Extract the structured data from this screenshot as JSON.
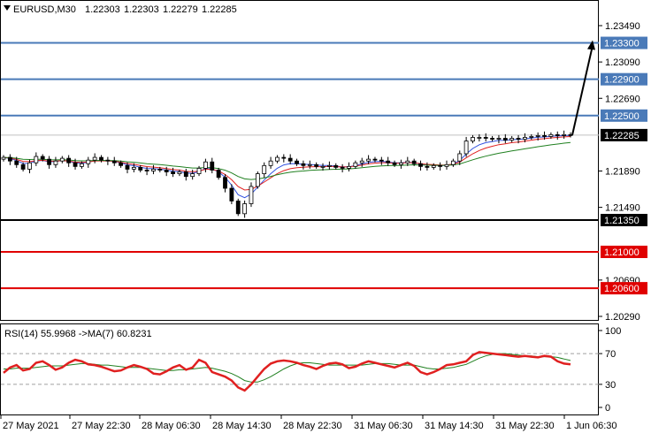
{
  "chart_data": [
    {
      "type": "candlestick",
      "title": "EURUSD,M30",
      "ohlc_header": {
        "open": "1.22303",
        "high": "1.22303",
        "low": "1.22279",
        "close": "1.22285"
      },
      "y_ticks": [
        "1.23490",
        "1.23090",
        "1.22690",
        "1.21890",
        "1.21490",
        "1.20690",
        "1.20290"
      ],
      "ylim": [
        1.2015,
        1.2375
      ],
      "x_tick_labels": [
        "27 May 2021",
        "27 May 22:30",
        "28 May 06:30",
        "28 May 14:30",
        "28 May 22:30",
        "31 May 06:30",
        "31 May 14:30",
        "31 May 22:30",
        "1 Jun 06:30"
      ],
      "current_price": "1.22285",
      "levels": [
        {
          "value": 1.233,
          "label": "1.23300",
          "color": "#4a7ab8"
        },
        {
          "value": 1.229,
          "label": "1.22900",
          "color": "#4a7ab8"
        },
        {
          "value": 1.225,
          "label": "1.22500",
          "color": "#4a7ab8"
        },
        {
          "value": 1.2135,
          "label": "1.21350",
          "color": "#000000"
        },
        {
          "value": 1.21,
          "label": "1.21000",
          "color": "#e00000"
        },
        {
          "value": 1.206,
          "label": "1.20600",
          "color": "#e00000"
        }
      ],
      "close_series": [
        1.2204,
        1.22,
        1.2196,
        1.2191,
        1.2198,
        1.2205,
        1.2202,
        1.2196,
        1.22,
        1.2203,
        1.2198,
        1.2194,
        1.2197,
        1.2201,
        1.2204,
        1.2201,
        1.22,
        1.2198,
        1.2195,
        1.2191,
        1.2193,
        1.219,
        1.2189,
        1.2191,
        1.219,
        1.2188,
        1.2186,
        1.2188,
        1.2183,
        1.2186,
        1.2192,
        1.2199,
        1.219,
        1.2182,
        1.217,
        1.2156,
        1.2142,
        1.2153,
        1.2172,
        1.2186,
        1.2195,
        1.22,
        1.2204,
        1.2203,
        1.22,
        1.2197,
        1.2195,
        1.2196,
        1.2194,
        1.2194,
        1.2195,
        1.2193,
        1.2192,
        1.2194,
        1.2198,
        1.22,
        1.2202,
        1.2201,
        1.22,
        1.2198,
        1.2196,
        1.2198,
        1.22,
        1.2197,
        1.2194,
        1.2193,
        1.2195,
        1.2194,
        1.2196,
        1.22,
        1.2208,
        1.2222,
        1.2226,
        1.2226,
        1.2225,
        1.2224,
        1.2225,
        1.2223,
        1.2225,
        1.2224,
        1.2226,
        1.2227,
        1.2228,
        1.2227,
        1.2229,
        1.2228,
        1.2229,
        1.22285
      ],
      "forecast_arrow": {
        "from": 1.22285,
        "to": 1.2333
      }
    },
    {
      "type": "line",
      "title": "RSI(14) 55.9968   ->MA(7) 60.8231",
      "y_ticks": [
        "100",
        "70",
        "30",
        "0"
      ],
      "ylim": [
        0,
        100
      ],
      "rsi": [
        45,
        52,
        55,
        48,
        50,
        58,
        60,
        55,
        49,
        52,
        58,
        62,
        60,
        56,
        55,
        53,
        50,
        47,
        48,
        52,
        55,
        53,
        50,
        44,
        43,
        47,
        52,
        55,
        49,
        52,
        62,
        58,
        46,
        43,
        40,
        35,
        26,
        22,
        30,
        40,
        50,
        57,
        60,
        61,
        60,
        58,
        55,
        53,
        50,
        54,
        57,
        58,
        56,
        51,
        53,
        57,
        60,
        58,
        56,
        54,
        52,
        55,
        58,
        54,
        46,
        43,
        46,
        50,
        55,
        56,
        58,
        60,
        68,
        72,
        71,
        70,
        69,
        68,
        67,
        66,
        67,
        66,
        65,
        67,
        66,
        60,
        57,
        56
      ],
      "ma": [
        50,
        50,
        51,
        51,
        51,
        52,
        53,
        54,
        54,
        54,
        55,
        56,
        57,
        57,
        56,
        55,
        55,
        54,
        53,
        52,
        52,
        52,
        51,
        50,
        49,
        48,
        48,
        49,
        49,
        50,
        51,
        52,
        51,
        49,
        47,
        44,
        40,
        35,
        33,
        33,
        36,
        40,
        45,
        50,
        54,
        57,
        58,
        58,
        57,
        56,
        55,
        55,
        55,
        55,
        55,
        55,
        56,
        57,
        57,
        57,
        56,
        55,
        55,
        55,
        53,
        51,
        50,
        50,
        51,
        52,
        54,
        56,
        60,
        64,
        67,
        69,
        70,
        70,
        69,
        68,
        67,
        67,
        66,
        66,
        66,
        65,
        63,
        61
      ]
    }
  ]
}
